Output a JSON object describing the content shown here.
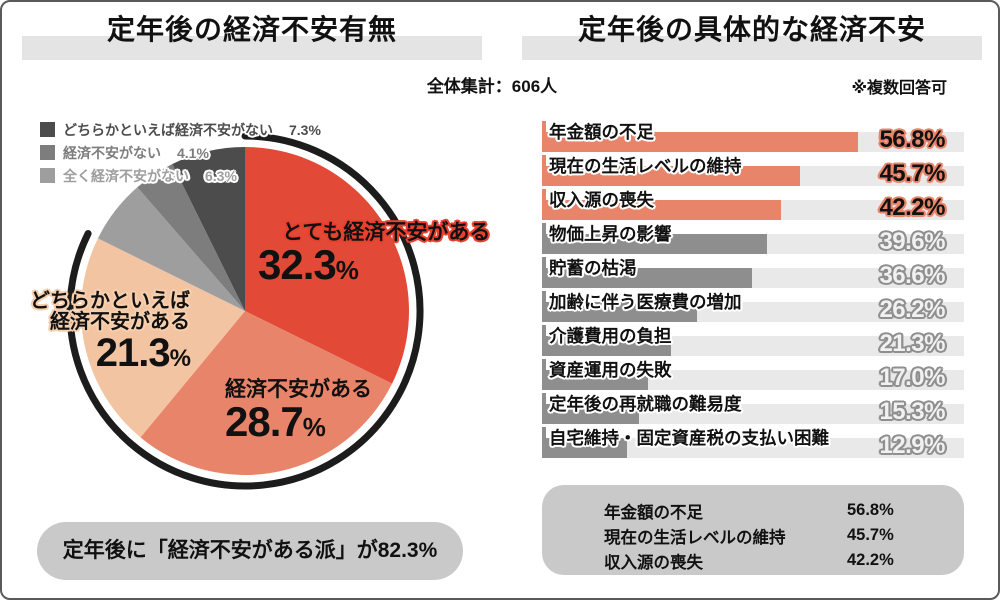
{
  "left_panel": {
    "title": "定年後の経済不安有無",
    "legend": [
      {
        "label": "どちらかといえば経済不安がない",
        "value": "7.3%",
        "color": "#4c4c4c"
      },
      {
        "label": "経済不安がない",
        "value": "4.1%",
        "color": "#7d7d7d"
      },
      {
        "label": "全く経済不安がない",
        "value": "6.3%",
        "color": "#9e9e9e"
      }
    ],
    "callout": "定年後に「経済不安がある派」が82.3%"
  },
  "right_panel": {
    "title": "定年後の具体的な経済不安",
    "total_label": "全体集計：606人",
    "note": "※複数回答可",
    "summary_rows": [
      {
        "label": "年金額の不足",
        "value": "56.8%"
      },
      {
        "label": "現在の生活レベルの維持",
        "value": "45.7%"
      },
      {
        "label": "収入源の喪失",
        "value": "42.2%"
      }
    ]
  },
  "chart_data": [
    {
      "type": "pie",
      "title": "定年後の経済不安有無",
      "start_angle_deg_from_top": 0,
      "direction": "clockwise",
      "slices": [
        {
          "label": "とても経済不安がある",
          "value": 32.3,
          "display": "32.3",
          "unit": "%",
          "color": "#e24a37",
          "label_outline": "#e8402e"
        },
        {
          "label": "経済不安がある",
          "value": 28.7,
          "display": "28.7",
          "unit": "%",
          "color": "#e8846a"
        },
        {
          "label": "どちらかといえば経済不安がある",
          "label_lines": [
            "どちらかといえば",
            "経済不安がある"
          ],
          "value": 21.3,
          "display": "21.3",
          "unit": "%",
          "color": "#f3c4a2",
          "label_outline": "#f6cfae"
        },
        {
          "label": "全く経済不安がない",
          "value": 6.3,
          "display": "6.3",
          "unit": "%",
          "color": "#9e9e9e"
        },
        {
          "label": "経済不安がない",
          "value": 4.1,
          "display": "4.1",
          "unit": "%",
          "color": "#7d7d7d"
        },
        {
          "label": "どちらかといえば経済不安がない",
          "value": 7.3,
          "display": "7.3",
          "unit": "%",
          "color": "#4c4c4c"
        }
      ],
      "highlight_arc": {
        "fraction": 0.823,
        "label": "経済不安がある派",
        "color": "#1c1c1c"
      }
    },
    {
      "type": "bar",
      "title": "定年後の具体的な経済不安",
      "orientation": "horizontal",
      "categories": [
        "年金額の不足",
        "現在の生活レベルの維持",
        "収入源の喪失",
        "物価上昇の影響",
        "貯蓄の枯渇",
        "加齢に伴う医療費の増加",
        "介護費用の負担",
        "資産運用の失敗",
        "定年後の再就職の難易度",
        "自宅維持・固定資産税の支払い困難"
      ],
      "values": [
        56.8,
        45.7,
        42.2,
        39.6,
        36.6,
        26.2,
        21.3,
        17.0,
        15.3,
        12.9
      ],
      "value_labels": [
        "56.8%",
        "45.7%",
        "42.2%",
        "39.6%",
        "36.6%",
        "26.2%",
        "21.3%",
        "17.0%",
        "15.3%",
        "12.9%"
      ],
      "highlight_count": 3,
      "highlight_color": "#e8846a",
      "bar_color": "#8e8e8e",
      "track_color": "#e9e9e9",
      "xlim": [
        0,
        77
      ]
    }
  ]
}
